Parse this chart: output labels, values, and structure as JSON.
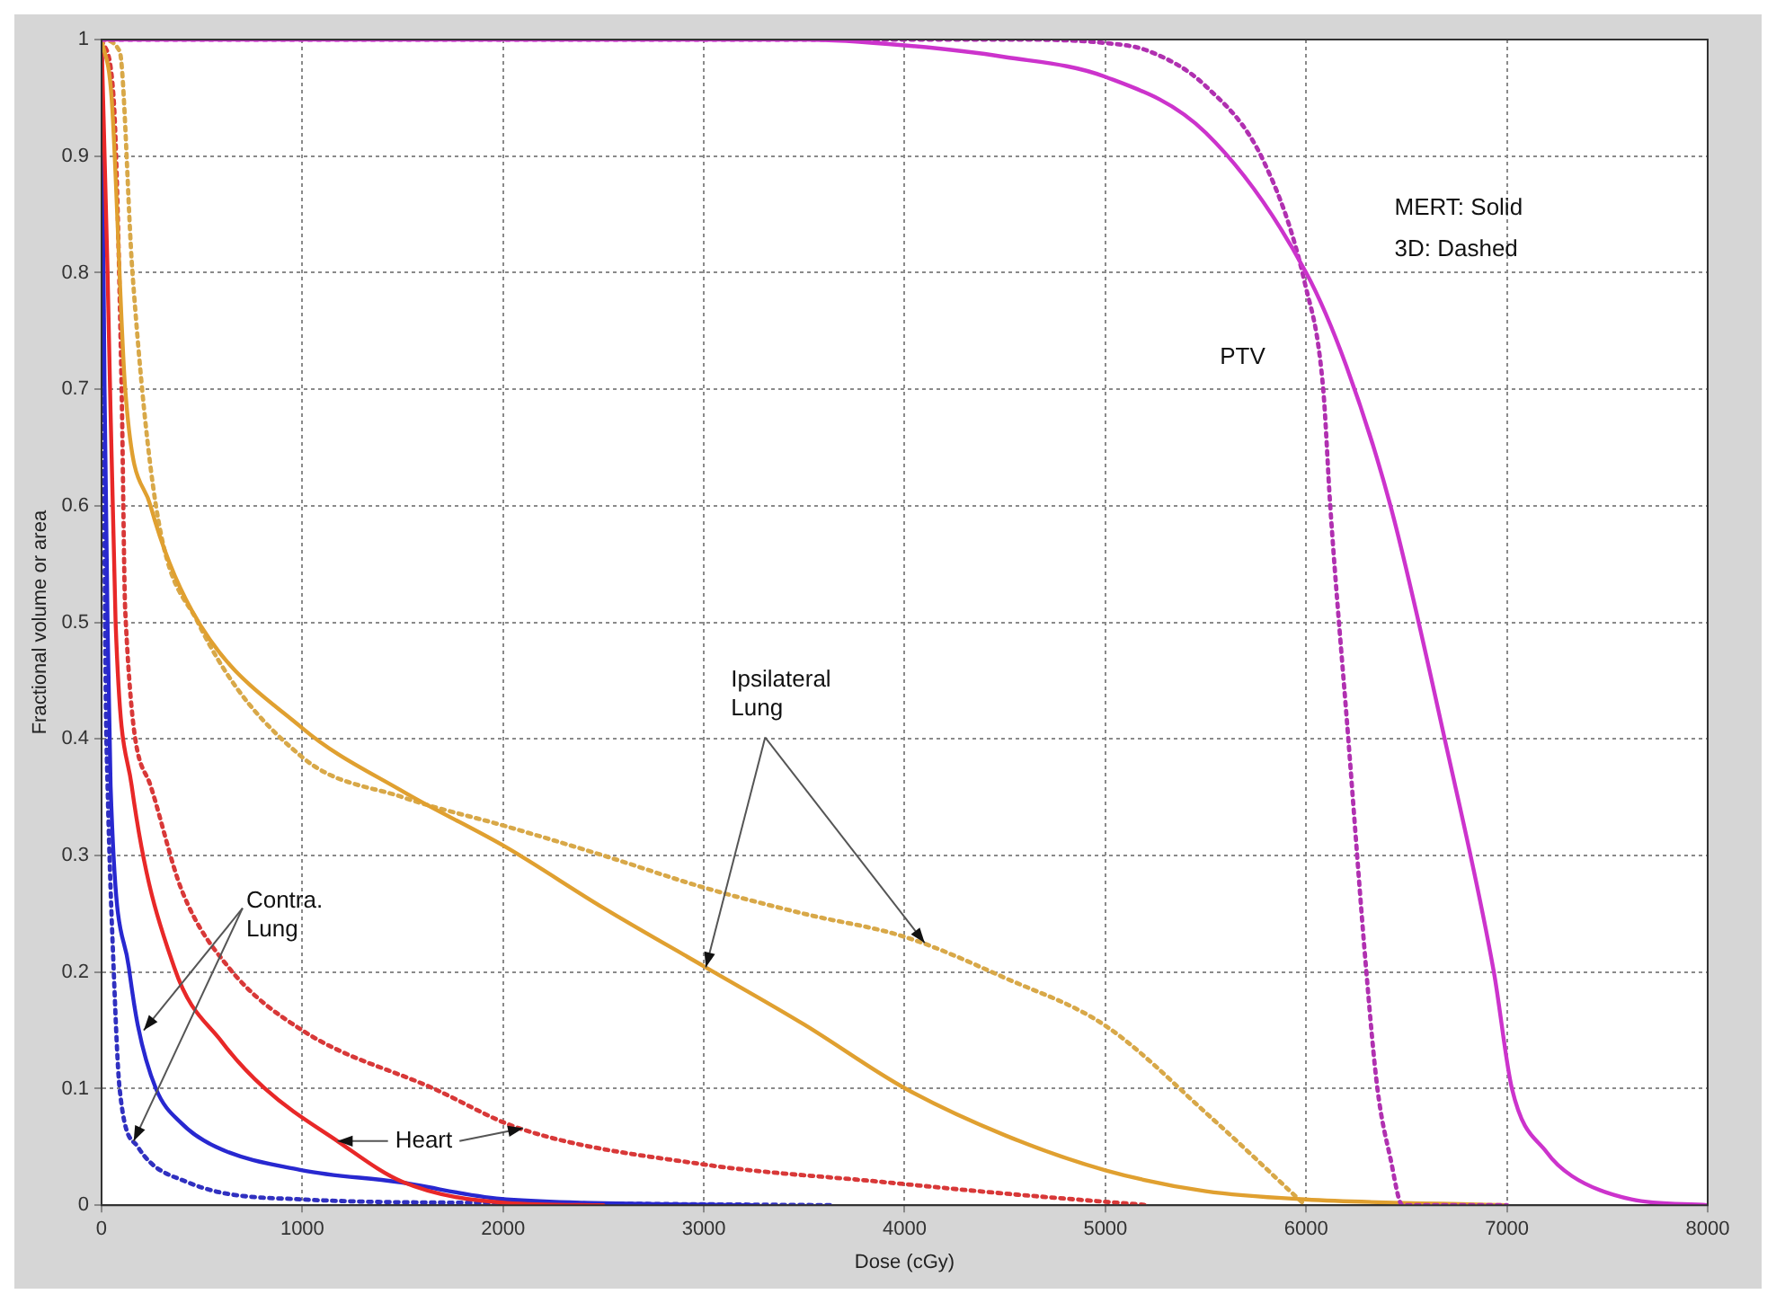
{
  "chart_data": {
    "type": "line",
    "xlabel": "Dose (cGy)",
    "ylabel": "Fractional volume or area",
    "xlim": [
      0,
      8000
    ],
    "xticks": [
      0,
      1000,
      2000,
      3000,
      4000,
      5000,
      6000,
      7000,
      8000
    ],
    "ylim": [
      0,
      1
    ],
    "yticks": [
      0,
      0.1,
      0.2,
      0.3,
      0.4,
      0.5,
      0.6,
      0.7,
      0.8,
      0.9,
      1
    ],
    "grid": true,
    "legend": false,
    "marker": "none",
    "annotations": [
      "MERT: Solid",
      "3D: Dashed",
      "PTV",
      {
        "text": "Ipsilateral Lung",
        "x": 3010,
        "y": 0.204
      },
      {
        "text": "Contra. Lung",
        "x": 210,
        "y": 0.15
      },
      {
        "text": "Heart",
        "x": 1175,
        "y": 0.055
      }
    ],
    "series": [
      {
        "color": "#cc33cc",
        "line_style": "solid",
        "x": [
          0,
          3500,
          4000,
          4500,
          5000,
          5500,
          6000,
          6200,
          6420,
          6690,
          6935,
          7025,
          7200,
          7324,
          7620,
          8000
        ],
        "values": [
          1,
          1,
          0.995,
          0.985,
          0.968,
          0.92,
          0.8,
          0.72,
          0.6,
          0.4,
          0.2,
          0.1,
          0.045,
          0.025,
          0.005,
          0
        ]
      },
      {
        "color": "#b030b0",
        "line_style": "dotted",
        "x": [
          0,
          4500,
          5000,
          5217,
          5500,
          5790,
          5995,
          6085,
          6120,
          6210,
          6300,
          6355,
          6420,
          6480,
          7000
        ],
        "values": [
          1,
          1,
          0.997,
          0.99,
          0.96,
          0.895,
          0.79,
          0.7,
          0.6,
          0.4,
          0.2,
          0.1,
          0.04,
          0,
          0
        ]
      },
      {
        "color": "#e0a030",
        "line_style": "solid",
        "x": [
          0,
          50,
          118,
          244,
          450,
          995,
          1500,
          2016,
          2500,
          3010,
          3500,
          4005,
          4500,
          5000,
          5500,
          5995,
          7000
        ],
        "values": [
          1,
          0.95,
          0.7,
          0.6,
          0.51,
          0.41,
          0.355,
          0.307,
          0.255,
          0.204,
          0.155,
          0.1,
          0.06,
          0.03,
          0.012,
          0.005,
          0
        ]
      },
      {
        "color": "#d8a848",
        "line_style": "dotted",
        "x": [
          0,
          90,
          154,
          271,
          480,
          995,
          1500,
          2016,
          2500,
          3010,
          3500,
          4005,
          4500,
          5000,
          5515,
          5995
        ],
        "values": [
          1,
          0.99,
          0.8,
          0.6,
          0.5,
          0.385,
          0.35,
          0.325,
          0.3,
          0.272,
          0.25,
          0.23,
          0.195,
          0.154,
          0.077,
          0
        ]
      },
      {
        "color": "#e82828",
        "line_style": "solid",
        "x": [
          0,
          30,
          70,
          150,
          362,
          600,
          814,
          1175,
          1500,
          2016,
          2500
        ],
        "values": [
          1,
          0.8,
          0.5,
          0.36,
          0.204,
          0.14,
          0.1,
          0.055,
          0.02,
          0.002,
          0
        ]
      },
      {
        "color": "#d83838",
        "line_style": "dotted",
        "x": [
          0,
          60,
          100,
          118,
          244,
          400,
          633,
          1000,
          1655,
          2080,
          3000,
          3888,
          4500,
          5217
        ],
        "values": [
          1,
          0.95,
          0.7,
          0.51,
          0.36,
          0.27,
          0.204,
          0.15,
          0.1,
          0.066,
          0.035,
          0.02,
          0.01,
          0
        ]
      },
      {
        "color": "#2828d0",
        "line_style": "solid",
        "x": [
          0,
          15,
          30,
          45,
          136,
          181,
          271,
          400,
          570,
          1000,
          1474,
          2016,
          3255
        ],
        "values": [
          1,
          0.7,
          0.5,
          0.36,
          0.204,
          0.154,
          0.1,
          0.07,
          0.05,
          0.03,
          0.02,
          0.005,
          0
        ]
      },
      {
        "color": "#3030c0",
        "line_style": "dotted",
        "x": [
          0,
          10,
          20,
          30,
          60,
          90,
          181,
          425,
          1000,
          2000,
          3650
        ],
        "values": [
          1,
          0.7,
          0.45,
          0.36,
          0.204,
          0.1,
          0.05,
          0.02,
          0.005,
          0.002,
          0
        ]
      }
    ]
  }
}
